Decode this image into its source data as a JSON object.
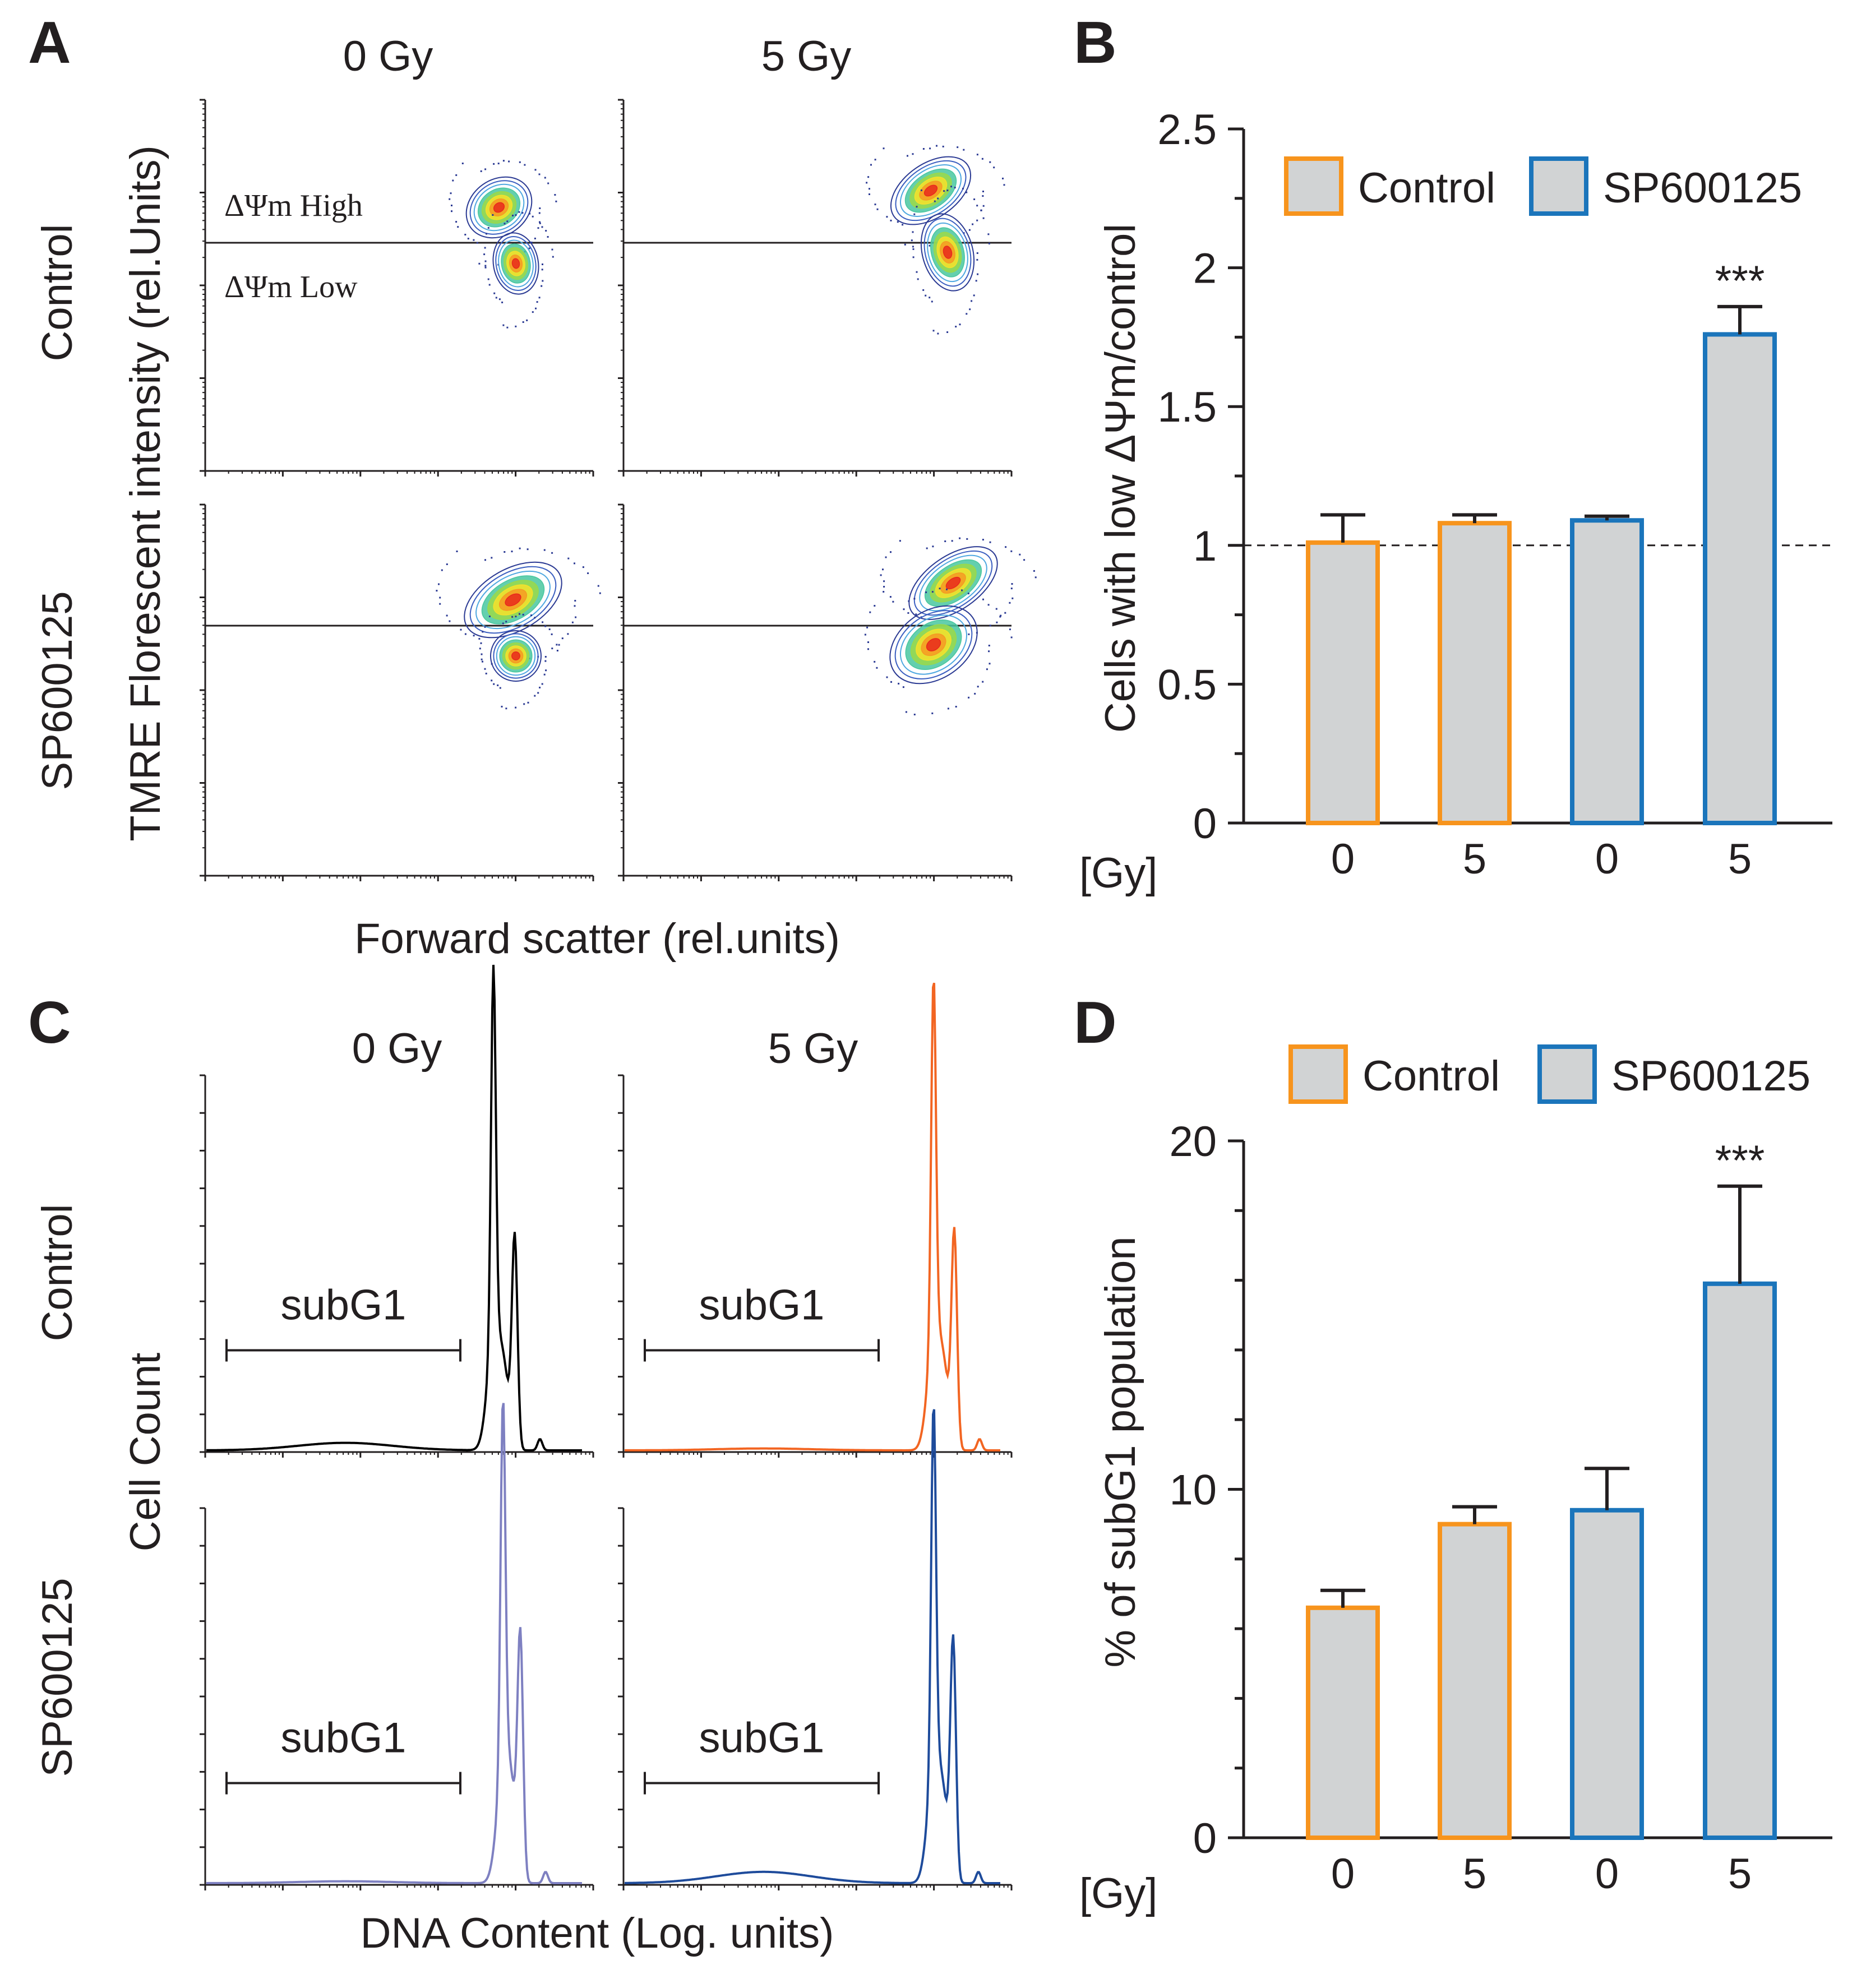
{
  "colors": {
    "control": "#f7941d",
    "sp": "#1b75bb",
    "bar_fill": "#d1d3d4",
    "ink": "#231f20",
    "hist_control_0": "#000000",
    "hist_control_5": "#f26522",
    "hist_sp_0": "#7e80c1",
    "hist_sp_5": "#1e4b9b"
  },
  "panelA": {
    "letter": "A",
    "col_labels": [
      "0 Gy",
      "5 Gy"
    ],
    "row_labels": [
      "Control",
      "SP600125"
    ],
    "ylabel": "TMRE Florescent intensity (rel.Units)",
    "xlabel": "Forward scatter (rel.units)",
    "gate_high": "ΔΨm High",
    "gate_low": "ΔΨm Low"
  },
  "panelC": {
    "letter": "C",
    "col_labels": [
      "0 Gy",
      "5 Gy"
    ],
    "row_labels": [
      "Control",
      "SP600125"
    ],
    "ylabel": "Cell Count",
    "xlabel": "DNA Content (Log. units)",
    "gate_label": "subG1"
  },
  "chart_data": [
    {
      "panel": "B",
      "type": "bar",
      "title": "",
      "ylabel": "Cells with low ΔΨm/control",
      "xlabel": "[Gy]",
      "categories": [
        "0",
        "5",
        "0",
        "5"
      ],
      "groups": [
        "Control",
        "Control",
        "SP600125",
        "SP600125"
      ],
      "values": [
        1.01,
        1.08,
        1.09,
        1.76
      ],
      "errors": [
        0.1,
        0.03,
        0.015,
        0.1
      ],
      "ylim": [
        0,
        2.5
      ],
      "yticks": [
        "0",
        "0.5",
        "1",
        "1.5",
        "2",
        "2.5"
      ],
      "reference_line": 1,
      "annotations": [
        "",
        "",
        "",
        "***"
      ],
      "legend": [
        "Control",
        "SP600125"
      ],
      "legend_position": "top"
    },
    {
      "panel": "D",
      "type": "bar",
      "title": "",
      "ylabel": "% of subG1 population",
      "xlabel": "[Gy]",
      "categories": [
        "0",
        "5",
        "0",
        "5"
      ],
      "groups": [
        "Control",
        "Control",
        "SP600125",
        "SP600125"
      ],
      "values": [
        6.6,
        9.0,
        9.4,
        15.9
      ],
      "errors": [
        0.5,
        0.5,
        1.2,
        2.8
      ],
      "ylim": [
        0,
        20
      ],
      "yticks": [
        "0",
        "10",
        "20"
      ],
      "annotations": [
        "",
        "",
        "",
        "***"
      ],
      "legend": [
        "Control",
        "SP600125"
      ],
      "legend_position": "top"
    }
  ]
}
